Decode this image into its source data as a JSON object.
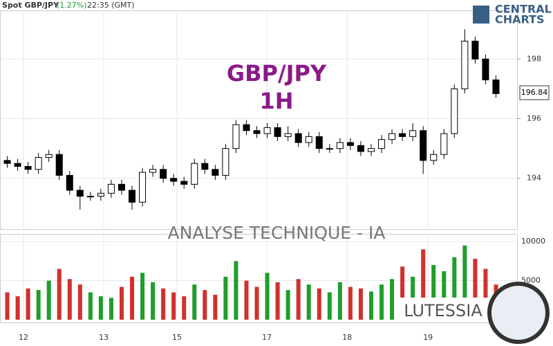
{
  "header": {
    "symbol": "Spot GBP/JPY",
    "change": "(1.27%)",
    "time": "22:35 (GMT)"
  },
  "logo": {
    "line1": "CENTRAL",
    "line2": "CHARTS"
  },
  "overlay": {
    "title": "GBP/JPY",
    "timeframe": "1H",
    "banner": "ANALYSE TECHNIQUE - IA",
    "brand": "LUTESSIA"
  },
  "chart_data": {
    "type": "candlestick",
    "up_color": "#ffffff",
    "down_color": "#000000",
    "xlim": [
      -0.5,
      47.5
    ],
    "xticks": [
      {
        "value": 1.56,
        "label": "12"
      },
      {
        "value": 9.27,
        "label": "13"
      },
      {
        "value": 16.32,
        "label": "15"
      },
      {
        "value": 24.97,
        "label": "17"
      },
      {
        "value": 32.68,
        "label": "18"
      },
      {
        "value": 40.46,
        "label": "19"
      }
    ],
    "ylim": [
      192.3,
      199.63
    ],
    "yticks": [
      194,
      196,
      198
    ],
    "grid": true,
    "candles": {
      "open": [
        194.6,
        194.5,
        194.4,
        194.3,
        194.7,
        194.8,
        194.1,
        193.6,
        193.4,
        193.4,
        193.5,
        193.8,
        193.6,
        193.2,
        194.2,
        194.3,
        194.0,
        193.9,
        193.8,
        194.5,
        194.3,
        194.1,
        195.0,
        195.8,
        195.6,
        195.5,
        195.7,
        195.4,
        195.5,
        195.2,
        195.4,
        195.0,
        195.0,
        195.2,
        195.1,
        194.9,
        195.0,
        195.3,
        195.5,
        195.4,
        195.6,
        194.6,
        194.8,
        195.5,
        197.0,
        198.6,
        198.0,
        197.3
      ],
      "high": [
        194.75,
        194.65,
        194.55,
        194.85,
        194.95,
        194.95,
        194.25,
        193.75,
        193.55,
        193.65,
        193.95,
        193.95,
        193.75,
        194.35,
        194.45,
        194.45,
        194.15,
        194.05,
        194.65,
        194.65,
        194.45,
        195.15,
        195.95,
        195.95,
        195.75,
        195.85,
        195.85,
        195.75,
        195.65,
        195.55,
        195.55,
        195.15,
        195.35,
        195.35,
        195.25,
        195.15,
        195.45,
        195.65,
        195.65,
        195.85,
        195.75,
        194.95,
        195.65,
        197.15,
        199.0,
        198.75,
        198.15,
        197.45
      ],
      "low": [
        194.35,
        194.25,
        194.15,
        194.15,
        194.55,
        193.95,
        193.45,
        192.95,
        193.25,
        193.25,
        193.35,
        193.45,
        192.95,
        193.05,
        194.05,
        193.85,
        193.75,
        193.65,
        193.65,
        194.15,
        193.95,
        193.95,
        194.85,
        195.45,
        195.35,
        195.35,
        195.25,
        195.25,
        195.05,
        195.05,
        194.85,
        194.85,
        194.85,
        194.95,
        194.75,
        194.75,
        194.85,
        195.15,
        195.25,
        195.25,
        194.15,
        194.45,
        194.65,
        195.35,
        196.85,
        197.85,
        197.15,
        196.7
      ],
      "close": [
        194.5,
        194.4,
        194.3,
        194.7,
        194.8,
        194.1,
        193.6,
        193.4,
        193.4,
        193.5,
        193.8,
        193.6,
        193.2,
        194.2,
        194.3,
        194.0,
        193.9,
        193.8,
        194.5,
        194.3,
        194.1,
        195.0,
        195.8,
        195.6,
        195.5,
        195.7,
        195.4,
        195.5,
        195.2,
        195.4,
        195.0,
        195.0,
        195.2,
        195.1,
        194.9,
        195.0,
        195.3,
        195.5,
        195.4,
        195.6,
        194.6,
        194.8,
        195.5,
        197.0,
        198.6,
        198.0,
        197.3,
        196.84
      ]
    },
    "volume": {
      "up_color": "#1f9e2c",
      "down_color": "#d0312d",
      "ylim": [
        0,
        10893
      ],
      "yticks": [
        5000,
        10000
      ],
      "values": [
        3500,
        3000,
        4000,
        3800,
        5000,
        6500,
        5200,
        4500,
        3500,
        3000,
        2800,
        4200,
        5500,
        6000,
        4800,
        4000,
        3500,
        3000,
        4500,
        3800,
        3200,
        5500,
        7500,
        5000,
        4200,
        6000,
        4800,
        3800,
        5200,
        4500,
        4000,
        3500,
        4800,
        4200,
        4000,
        3600,
        4500,
        5200,
        6800,
        5500,
        9000,
        7000,
        6200,
        8000,
        9500,
        7800,
        6500,
        4500
      ]
    }
  }
}
